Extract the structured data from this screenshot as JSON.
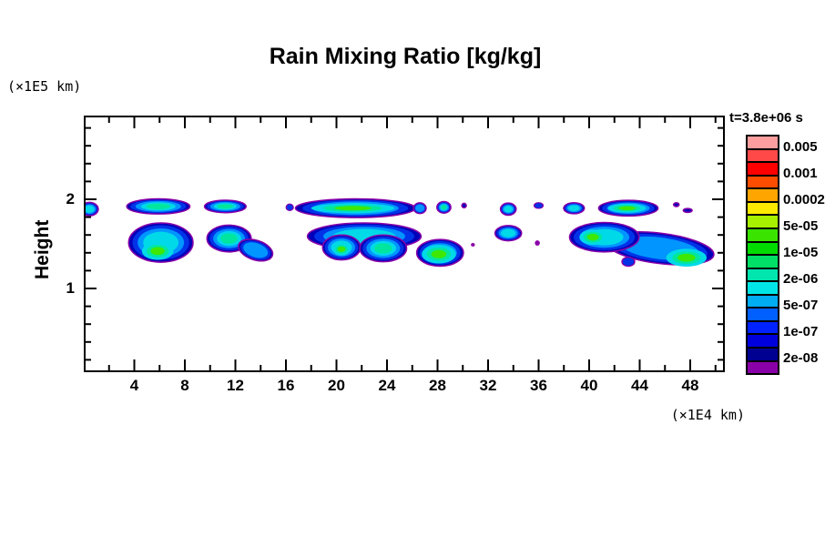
{
  "title": "Rain Mixing Ratio [kg/kg]",
  "y_axis": {
    "unit": "(×1E5 km)",
    "label": "Height",
    "tick_labels": [
      "2",
      "1"
    ]
  },
  "x_axis": {
    "unit": "(×1E4 km)",
    "tick_labels": [
      "4",
      "8",
      "12",
      "16",
      "20",
      "24",
      "28",
      "32",
      "36",
      "40",
      "44",
      "48"
    ]
  },
  "legend": {
    "time": "t=3.8e+06 s",
    "labels": [
      "0.005",
      "0.001",
      "0.0002",
      "5e-05",
      "1e-05",
      "2e-06",
      "5e-07",
      "1e-07",
      "2e-08"
    ],
    "cell_colors": [
      "#FF9E9E",
      "#FF4848",
      "#FF0000",
      "#FF4D00",
      "#FFA500",
      "#FFE900",
      "#A6F000",
      "#3BE400",
      "#00DC00",
      "#00E066",
      "#00E6AE",
      "#00E6E6",
      "#00ACF2",
      "#0060FF",
      "#0022FF",
      "#0000DC",
      "#000091",
      "#8A00A8"
    ]
  },
  "chart_data": {
    "type": "heatmap",
    "title": "Rain Mixing Ratio [kg/kg]",
    "time_label": "t=3.8e+06 s",
    "x": {
      "label": "(×1E4 km)",
      "min": 0,
      "max": 50.6,
      "major_ticks": [
        4,
        8,
        12,
        16,
        20,
        24,
        28,
        32,
        36,
        40,
        44,
        48
      ],
      "minor_step": 2
    },
    "y": {
      "label": "Height (×1E5 km)",
      "min": 0.11,
      "max": 2.93,
      "major_ticks": [
        1,
        2
      ],
      "minor_step": 0.2
    },
    "colorbar": {
      "boundary_levels": [
        "2e-08",
        "5e-08",
        "1e-07",
        "2e-07",
        "5e-07",
        "1e-06",
        "2e-06",
        "5e-06",
        "1e-05",
        "2e-05",
        "5e-05",
        "0.0001",
        "0.0002",
        "0.0005",
        "0.001",
        "0.002",
        "0.005"
      ],
      "labeled_levels": [
        "0.005",
        "0.001",
        "0.0002",
        "5e-05",
        "1e-05",
        "2e-06",
        "5e-07",
        "1e-07",
        "2e-08"
      ]
    },
    "palette": [
      "#8A00A8",
      "#0000B9",
      "#0033E8",
      "#0095FF",
      "#00D9E8",
      "#00E69E",
      "#3FE800"
    ],
    "clouds": [
      {
        "x": 0.45,
        "y": 1.89,
        "rx": 0.7,
        "ry": 0.075,
        "k": 4
      },
      {
        "x": 5.9,
        "y": 1.92,
        "rx": 2.5,
        "ry": 0.085,
        "k": 5
      },
      {
        "x": 11.2,
        "y": 1.92,
        "rx": 1.65,
        "ry": 0.07,
        "k": 5
      },
      {
        "x": 16.3,
        "y": 1.91,
        "rx": 0.28,
        "ry": 0.035,
        "k": 2
      },
      {
        "x": 21.5,
        "y": 1.9,
        "rx": 4.75,
        "ry": 0.105,
        "k": 5
      },
      {
        "x": 21.3,
        "y": 1.9,
        "rx": 3.3,
        "ry": 0.055,
        "k": 6,
        "soft": true
      },
      {
        "x": 26.6,
        "y": 1.9,
        "rx": 0.5,
        "ry": 0.06,
        "k": 3
      },
      {
        "x": 28.5,
        "y": 1.91,
        "rx": 0.55,
        "ry": 0.065,
        "k": 5
      },
      {
        "x": 30.1,
        "y": 1.93,
        "rx": 0.18,
        "ry": 0.025,
        "k": 1
      },
      {
        "x": 33.6,
        "y": 1.89,
        "rx": 0.62,
        "ry": 0.068,
        "k": 4
      },
      {
        "x": 36.0,
        "y": 1.93,
        "rx": 0.35,
        "ry": 0.03,
        "k": 2
      },
      {
        "x": 38.8,
        "y": 1.9,
        "rx": 0.82,
        "ry": 0.062,
        "k": 4
      },
      {
        "x": 43.1,
        "y": 1.9,
        "rx": 2.35,
        "ry": 0.088,
        "k": 5
      },
      {
        "x": 43.0,
        "y": 1.9,
        "rx": 1.5,
        "ry": 0.05,
        "k": 6,
        "soft": true
      },
      {
        "x": 46.9,
        "y": 1.94,
        "rx": 0.22,
        "ry": 0.022,
        "k": 1
      },
      {
        "x": 47.8,
        "y": 1.875,
        "rx": 0.35,
        "ry": 0.022,
        "k": 1
      },
      {
        "x": 6.1,
        "y": 1.515,
        "rx": 2.55,
        "ry": 0.22,
        "k": 4
      },
      {
        "x": 5.85,
        "y": 1.42,
        "rx": 1.25,
        "ry": 0.1,
        "k": 6,
        "soft": true
      },
      {
        "x": 11.5,
        "y": 1.56,
        "rx": 1.75,
        "ry": 0.15,
        "k": 5
      },
      {
        "x": 13.6,
        "y": 1.43,
        "rx": 1.4,
        "ry": 0.11,
        "rot": 18,
        "k": 3
      },
      {
        "x": 22.2,
        "y": 1.585,
        "rx": 4.5,
        "ry": 0.15,
        "k": 4
      },
      {
        "x": 20.4,
        "y": 1.46,
        "rx": 1.5,
        "ry": 0.14,
        "k": 5
      },
      {
        "x": 23.7,
        "y": 1.45,
        "rx": 1.85,
        "ry": 0.15,
        "k": 5
      },
      {
        "x": 20.4,
        "y": 1.44,
        "rx": 0.7,
        "ry": 0.07,
        "k": 6,
        "soft": true
      },
      {
        "x": 28.2,
        "y": 1.4,
        "rx": 1.85,
        "ry": 0.15,
        "k": 5
      },
      {
        "x": 28.1,
        "y": 1.385,
        "rx": 1.35,
        "ry": 0.105,
        "k": 6,
        "soft": true
      },
      {
        "x": 30.8,
        "y": 1.49,
        "rx": 0.16,
        "ry": 0.02,
        "k": 0
      },
      {
        "x": 33.6,
        "y": 1.62,
        "rx": 1.05,
        "ry": 0.085,
        "k": 4
      },
      {
        "x": 35.9,
        "y": 1.51,
        "rx": 0.2,
        "ry": 0.03,
        "k": 0
      },
      {
        "x": 45.6,
        "y": 1.45,
        "rx": 4.3,
        "ry": 0.17,
        "rot": 7,
        "k": 3
      },
      {
        "x": 41.2,
        "y": 1.575,
        "rx": 2.75,
        "ry": 0.165,
        "k": 4
      },
      {
        "x": 40.3,
        "y": 1.575,
        "rx": 1.05,
        "ry": 0.085,
        "k": 6,
        "soft": true
      },
      {
        "x": 47.7,
        "y": 1.345,
        "rx": 1.6,
        "ry": 0.1,
        "k": 6,
        "soft": true
      },
      {
        "x": 43.1,
        "y": 1.3,
        "rx": 0.5,
        "ry": 0.05,
        "k": 2
      }
    ]
  }
}
